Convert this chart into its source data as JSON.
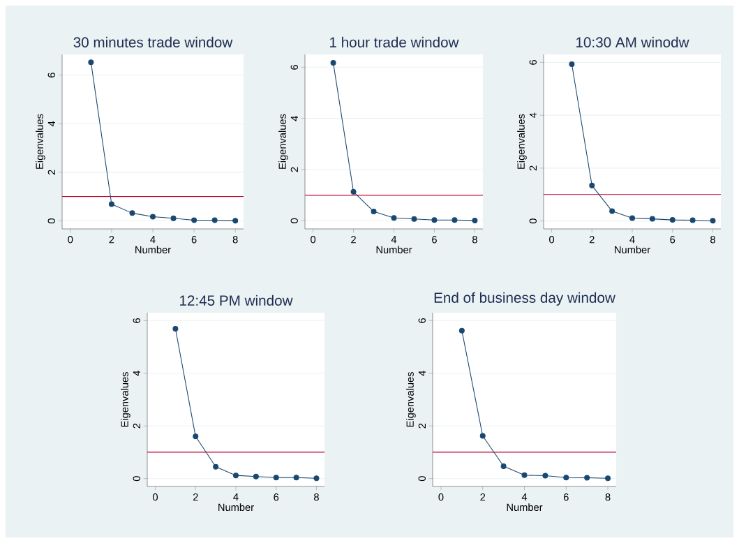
{
  "chart_data": [
    {
      "type": "line",
      "title": "30 minutes trade window",
      "xlabel": "Number",
      "ylabel": "Eigenvalues",
      "x": [
        1,
        2,
        3,
        4,
        5,
        6,
        7,
        8
      ],
      "series": [
        {
          "color": "#1a476f",
          "values": [
            6.53,
            0.69,
            0.32,
            0.17,
            0.11,
            0.03,
            0.03,
            0.01
          ]
        }
      ],
      "xlim": [
        -0.4,
        8.4
      ],
      "ylim": [
        -0.33,
        6.85
      ],
      "xticks": [
        0,
        2,
        4,
        6,
        8
      ],
      "yticks": [
        0,
        2,
        4,
        6
      ],
      "grid": "y",
      "marker": "circle",
      "ref_lines": [
        {
          "axis": "y",
          "value": 1,
          "color": "#c10534"
        }
      ]
    },
    {
      "type": "line",
      "title": "1 hour trade window",
      "xlabel": "Number",
      "ylabel": "Eigenvalues",
      "x": [
        1,
        2,
        3,
        4,
        5,
        6,
        7,
        8
      ],
      "series": [
        {
          "color": "#1a476f",
          "values": [
            6.17,
            1.13,
            0.36,
            0.11,
            0.07,
            0.03,
            0.03,
            0.01
          ]
        }
      ],
      "xlim": [
        -0.4,
        8.4
      ],
      "ylim": [
        -0.32,
        6.5
      ],
      "xticks": [
        0,
        2,
        4,
        6,
        8
      ],
      "yticks": [
        0,
        2,
        4,
        6
      ],
      "grid": "y",
      "marker": "circle",
      "ref_lines": [
        {
          "axis": "y",
          "value": 1,
          "color": "#c10534"
        }
      ]
    },
    {
      "type": "line",
      "title": "10:30 AM winodw",
      "xlabel": "Number",
      "ylabel": "Eigenvalues",
      "x": [
        1,
        2,
        3,
        4,
        5,
        6,
        7,
        8
      ],
      "series": [
        {
          "color": "#1a476f",
          "values": [
            5.93,
            1.34,
            0.37,
            0.11,
            0.08,
            0.04,
            0.03,
            0.01
          ]
        }
      ],
      "xlim": [
        -0.4,
        8.4
      ],
      "ylim": [
        -0.3,
        6.3
      ],
      "xticks": [
        0,
        2,
        4,
        6,
        8
      ],
      "yticks": [
        0,
        2,
        4,
        6
      ],
      "grid": "y",
      "marker": "circle",
      "ref_lines": [
        {
          "axis": "y",
          "value": 1,
          "color": "#c10534"
        }
      ]
    },
    {
      "type": "line",
      "title": "12:45 PM window",
      "xlabel": "Number",
      "ylabel": "Eigenvalues",
      "x": [
        1,
        2,
        3,
        4,
        5,
        6,
        7,
        8
      ],
      "series": [
        {
          "color": "#1a476f",
          "values": [
            5.69,
            1.6,
            0.45,
            0.12,
            0.08,
            0.04,
            0.04,
            0.01
          ]
        }
      ],
      "xlim": [
        -0.4,
        8.4
      ],
      "ylim": [
        -0.3,
        6.3
      ],
      "xticks": [
        0,
        2,
        4,
        6,
        8
      ],
      "yticks": [
        0,
        2,
        4,
        6
      ],
      "grid": "y",
      "marker": "circle",
      "ref_lines": [
        {
          "axis": "y",
          "value": 1,
          "color": "#c10534"
        }
      ]
    },
    {
      "type": "line",
      "title": "End of business day window",
      "xlabel": "Number",
      "ylabel": "Eigenvalues",
      "x": [
        1,
        2,
        3,
        4,
        5,
        6,
        7,
        8
      ],
      "series": [
        {
          "color": "#1a476f",
          "values": [
            5.62,
            1.62,
            0.47,
            0.13,
            0.11,
            0.04,
            0.03,
            0.01
          ]
        }
      ],
      "xlim": [
        -0.4,
        8.4
      ],
      "ylim": [
        -0.3,
        6.3
      ],
      "xticks": [
        0,
        2,
        4,
        6,
        8
      ],
      "yticks": [
        0,
        2,
        4,
        6
      ],
      "grid": "y",
      "marker": "circle",
      "ref_lines": [
        {
          "axis": "y",
          "value": 1,
          "color": "#c10534"
        }
      ]
    }
  ]
}
